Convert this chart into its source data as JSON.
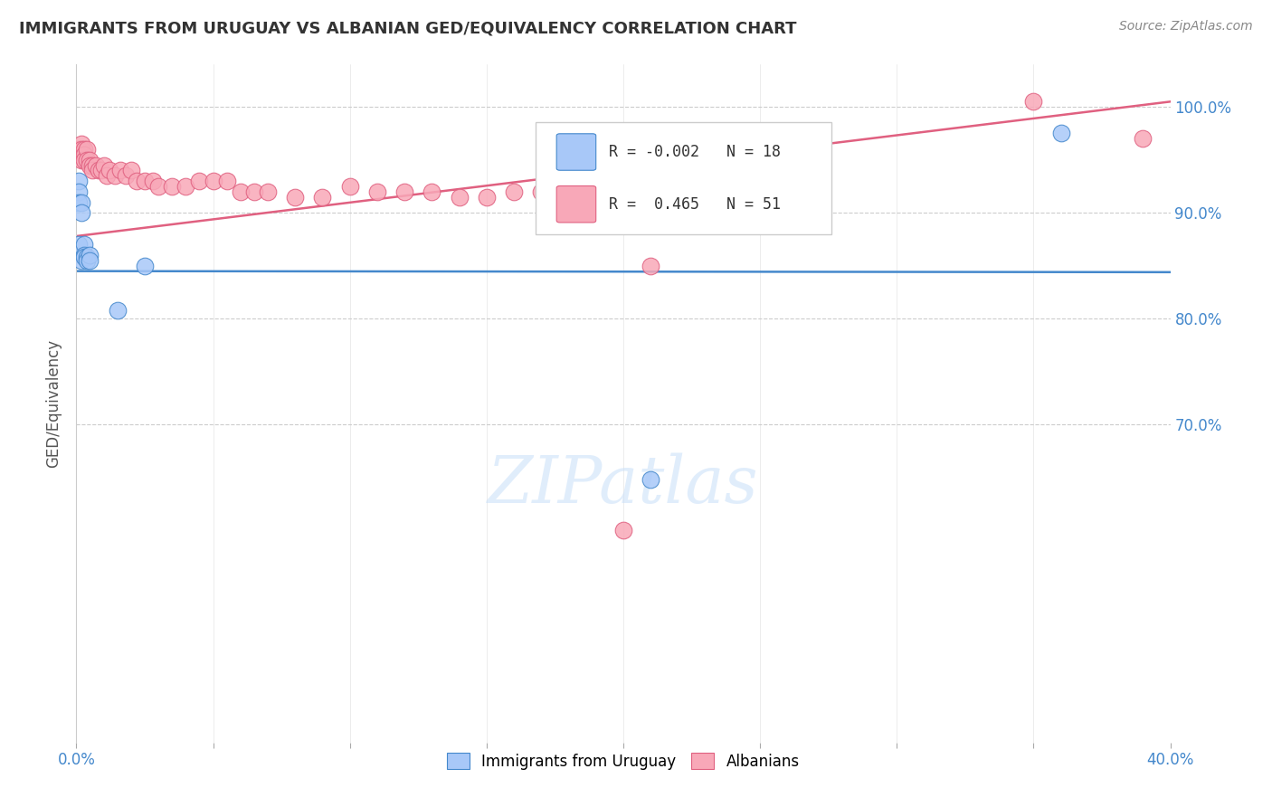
{
  "title": "IMMIGRANTS FROM URUGUAY VS ALBANIAN GED/EQUIVALENCY CORRELATION CHART",
  "source": "Source: ZipAtlas.com",
  "ylabel": "GED/Equivalency",
  "xlim": [
    0.0,
    0.4
  ],
  "ylim": [
    0.4,
    1.04
  ],
  "ytick_values": [
    1.0,
    0.9,
    0.8,
    0.7
  ],
  "ytick_labels": [
    "100.0%",
    "90.0%",
    "80.0%",
    "70.0%"
  ],
  "xtick_labels_show": [
    "0.0%",
    "40.0%"
  ],
  "legend_r_uruguay": "-0.002",
  "legend_n_uruguay": "18",
  "legend_r_albanian": "0.465",
  "legend_n_albanian": "51",
  "uruguay_color": "#a8c8f8",
  "albanian_color": "#f8a8b8",
  "trend_uruguay_color": "#4488cc",
  "trend_albanian_color": "#e06080",
  "watermark": "ZIPatlas",
  "background_color": "#ffffff",
  "uruguay_x": [
    0.001,
    0.001,
    0.001,
    0.001,
    0.002,
    0.002,
    0.002,
    0.003,
    0.003,
    0.003,
    0.004,
    0.004,
    0.005,
    0.005,
    0.015,
    0.025,
    0.21,
    0.36
  ],
  "uruguay_y": [
    0.93,
    0.92,
    0.91,
    0.87,
    0.91,
    0.9,
    0.855,
    0.87,
    0.86,
    0.858,
    0.858,
    0.855,
    0.86,
    0.855,
    0.808,
    0.85,
    0.648,
    0.975
  ],
  "albanian_x": [
    0.001,
    0.001,
    0.002,
    0.002,
    0.002,
    0.003,
    0.003,
    0.003,
    0.004,
    0.004,
    0.005,
    0.005,
    0.006,
    0.006,
    0.007,
    0.008,
    0.009,
    0.01,
    0.011,
    0.012,
    0.014,
    0.016,
    0.018,
    0.02,
    0.022,
    0.025,
    0.028,
    0.03,
    0.035,
    0.04,
    0.045,
    0.05,
    0.055,
    0.06,
    0.065,
    0.07,
    0.08,
    0.09,
    0.1,
    0.11,
    0.12,
    0.13,
    0.14,
    0.15,
    0.16,
    0.17,
    0.18,
    0.2,
    0.21,
    0.35,
    0.39
  ],
  "albanian_y": [
    0.96,
    0.955,
    0.965,
    0.96,
    0.95,
    0.96,
    0.955,
    0.95,
    0.96,
    0.95,
    0.95,
    0.945,
    0.945,
    0.94,
    0.945,
    0.94,
    0.94,
    0.945,
    0.935,
    0.94,
    0.935,
    0.94,
    0.935,
    0.94,
    0.93,
    0.93,
    0.93,
    0.925,
    0.925,
    0.925,
    0.93,
    0.93,
    0.93,
    0.92,
    0.92,
    0.92,
    0.915,
    0.915,
    0.925,
    0.92,
    0.92,
    0.92,
    0.915,
    0.915,
    0.92,
    0.92,
    0.92,
    0.6,
    0.85,
    1.005,
    0.97
  ],
  "trend_albanian_x0": 0.0,
  "trend_albanian_y0": 0.878,
  "trend_albanian_x1": 0.4,
  "trend_albanian_y1": 1.005,
  "trend_uruguay_x0": 0.0,
  "trend_uruguay_y0": 0.845,
  "trend_uruguay_x1": 0.4,
  "trend_uruguay_y1": 0.844
}
